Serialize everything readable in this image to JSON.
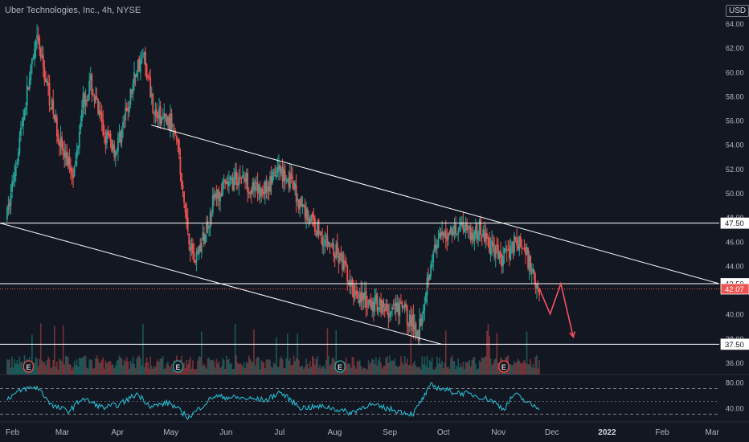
{
  "header": {
    "title": "Uber Technologies, Inc., 4h, NYSE",
    "currency": "USD"
  },
  "colors": {
    "background": "#131722",
    "up": "#26a69a",
    "down": "#ef5350",
    "lines": "#ffffff",
    "rsi": "#26c6da",
    "projection": "#f7525f",
    "last_price_tag": "#ef5350"
  },
  "chart_data": {
    "type": "candlestick",
    "title": "Uber Technologies, Inc., 4h, NYSE",
    "price_axis": {
      "ticks": [
        64.0,
        62.0,
        60.0,
        58.0,
        56.0,
        54.0,
        52.0,
        50.0,
        48.0,
        46.0,
        44.0,
        40.0,
        38.0,
        36.0
      ],
      "ylim": [
        35.0,
        65.0
      ]
    },
    "time_axis": {
      "ticks": [
        "Feb",
        "Mar",
        "Apr",
        "May",
        "Jun",
        "Jul",
        "Aug",
        "Sep",
        "Oct",
        "Nov",
        "Dec",
        "2022",
        "Feb",
        "Mar"
      ],
      "xlim": [
        "2021-01-25",
        "2022-03-05"
      ]
    },
    "price_path": [
      [
        "2021-01-29",
        48.0
      ],
      [
        "2021-02-05",
        54.5
      ],
      [
        "2021-02-10",
        59.0
      ],
      [
        "2021-02-15",
        62.6
      ],
      [
        "2021-02-18",
        60.5
      ],
      [
        "2021-02-24",
        56.5
      ],
      [
        "2021-03-02",
        53.0
      ],
      [
        "2021-03-08",
        51.8
      ],
      [
        "2021-03-12",
        57.5
      ],
      [
        "2021-03-17",
        59.0
      ],
      [
        "2021-03-24",
        55.0
      ],
      [
        "2021-03-31",
        53.5
      ],
      [
        "2021-04-06",
        56.5
      ],
      [
        "2021-04-12",
        60.5
      ],
      [
        "2021-04-16",
        61.2
      ],
      [
        "2021-04-22",
        56.5
      ],
      [
        "2021-04-27",
        56.0
      ],
      [
        "2021-05-04",
        55.5
      ],
      [
        "2021-05-07",
        50.5
      ],
      [
        "2021-05-11",
        46.5
      ],
      [
        "2021-05-14",
        44.5
      ],
      [
        "2021-05-19",
        46.0
      ],
      [
        "2021-05-25",
        49.5
      ],
      [
        "2021-06-01",
        50.5
      ],
      [
        "2021-06-10",
        51.5
      ],
      [
        "2021-06-17",
        50.0
      ],
      [
        "2021-06-24",
        50.5
      ],
      [
        "2021-07-01",
        52.0
      ],
      [
        "2021-07-07",
        51.0
      ],
      [
        "2021-07-13",
        49.0
      ],
      [
        "2021-07-20",
        47.5
      ],
      [
        "2021-07-27",
        46.0
      ],
      [
        "2021-08-02",
        45.0
      ],
      [
        "2021-08-06",
        44.0
      ],
      [
        "2021-08-10",
        42.0
      ],
      [
        "2021-08-16",
        41.5
      ],
      [
        "2021-08-20",
        40.5
      ],
      [
        "2021-08-26",
        41.0
      ],
      [
        "2021-09-01",
        40.0
      ],
      [
        "2021-09-08",
        40.5
      ],
      [
        "2021-09-14",
        39.0
      ],
      [
        "2021-09-17",
        38.5
      ],
      [
        "2021-09-21",
        42.0
      ],
      [
        "2021-09-24",
        44.5
      ],
      [
        "2021-09-29",
        46.0
      ],
      [
        "2021-10-06",
        47.0
      ],
      [
        "2021-10-13",
        47.5
      ],
      [
        "2021-10-18",
        46.5
      ],
      [
        "2021-10-22",
        47.0
      ],
      [
        "2021-10-28",
        45.5
      ],
      [
        "2021-11-03",
        44.5
      ],
      [
        "2021-11-10",
        46.0
      ],
      [
        "2021-11-15",
        45.5
      ],
      [
        "2021-11-19",
        44.0
      ],
      [
        "2021-11-22",
        42.8
      ],
      [
        "2021-11-24",
        42.07
      ]
    ],
    "horizontal_levels": [
      {
        "value": 47.5,
        "label": "47.50"
      },
      {
        "value": 42.5,
        "label": "42.50"
      },
      {
        "value": 37.5,
        "label": "37.50"
      }
    ],
    "last_price": {
      "value": 42.07,
      "label": "42.07"
    },
    "trendlines": [
      {
        "from": [
          "2021-04-20",
          55.6
        ],
        "to": [
          "2022-03-05",
          42.5
        ]
      },
      {
        "from": [
          "2021-01-25",
          47.5
        ],
        "to": [
          "2021-09-30",
          37.5
        ]
      }
    ],
    "projection": [
      [
        "2021-11-24",
        42.07
      ],
      [
        "2021-11-30",
        40.0
      ],
      [
        "2021-12-06",
        42.5
      ],
      [
        "2021-12-13",
        38.1
      ]
    ],
    "earnings_markers": [
      {
        "date": "2021-02-10",
        "label": "E"
      },
      {
        "date": "2021-05-05",
        "label": "E"
      },
      {
        "date": "2021-08-04",
        "label": "E"
      },
      {
        "date": "2021-11-04",
        "label": "E"
      }
    ],
    "rsi": {
      "axis_ticks": [
        80.0,
        40.0
      ],
      "ylim": [
        18,
        92
      ],
      "bands": [
        70,
        30
      ],
      "midline": 50,
      "path": [
        [
          "2021-01-29",
          55
        ],
        [
          "2021-02-08",
          70
        ],
        [
          "2021-02-15",
          72
        ],
        [
          "2021-02-24",
          42
        ],
        [
          "2021-03-05",
          35
        ],
        [
          "2021-03-12",
          55
        ],
        [
          "2021-03-24",
          40
        ],
        [
          "2021-04-02",
          45
        ],
        [
          "2021-04-12",
          62
        ],
        [
          "2021-04-20",
          42
        ],
        [
          "2021-04-30",
          48
        ],
        [
          "2021-05-11",
          25
        ],
        [
          "2021-05-25",
          58
        ],
        [
          "2021-06-10",
          55
        ],
        [
          "2021-06-24",
          52
        ],
        [
          "2021-07-01",
          65
        ],
        [
          "2021-07-13",
          40
        ],
        [
          "2021-07-27",
          42
        ],
        [
          "2021-08-10",
          32
        ],
        [
          "2021-08-20",
          45
        ],
        [
          "2021-09-01",
          38
        ],
        [
          "2021-09-14",
          30
        ],
        [
          "2021-09-24",
          75
        ],
        [
          "2021-10-06",
          65
        ],
        [
          "2021-10-18",
          60
        ],
        [
          "2021-10-28",
          52
        ],
        [
          "2021-11-04",
          38
        ],
        [
          "2021-11-10",
          62
        ],
        [
          "2021-11-19",
          45
        ],
        [
          "2021-11-24",
          40
        ]
      ]
    }
  }
}
